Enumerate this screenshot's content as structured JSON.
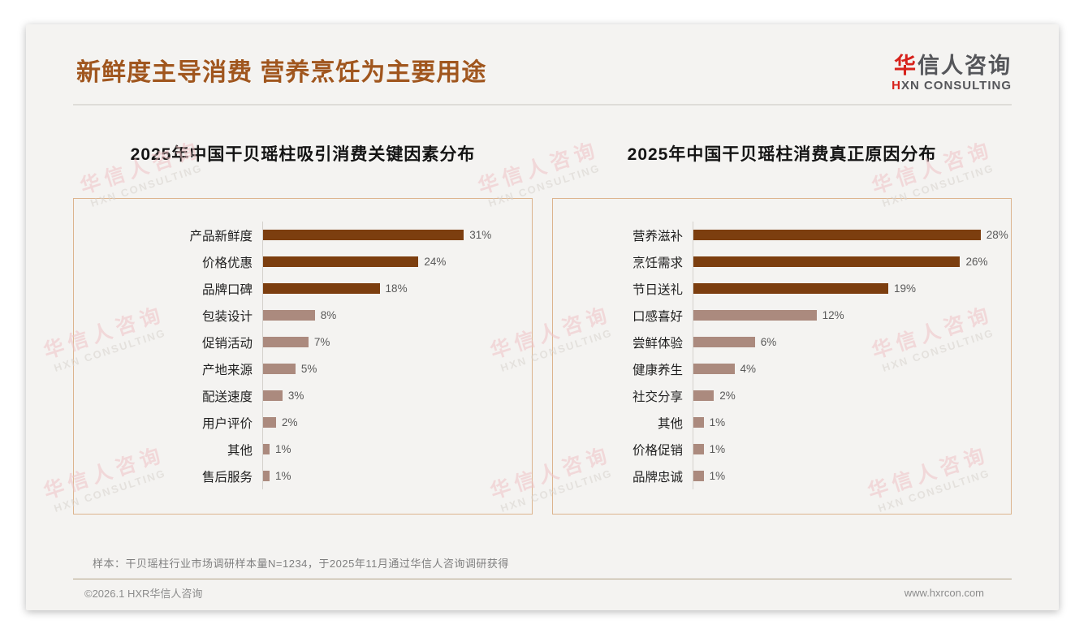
{
  "header": {
    "title": "新鲜度主导消费 营养烹饪为主要用途",
    "logo": {
      "cn_first": "华",
      "cn_rest": "信人咨询",
      "en_first": "H",
      "en_rest": "XN CONSULTING"
    }
  },
  "colors": {
    "title_brown": "#A0561E",
    "bar_dark": "#7C3E0F",
    "bar_light": "#AB8A7E",
    "panel_border": "#DCB48E",
    "logo_red": "#D7221C"
  },
  "watermark": {
    "line1": "华信人咨询",
    "line2": "HXN CONSULTING"
  },
  "chart_data": [
    {
      "type": "bar",
      "orientation": "horizontal",
      "title": "2025年中国干贝瑶柱吸引消费关键因素分布",
      "categories": [
        "产品新鲜度",
        "价格优惠",
        "品牌口碑",
        "包装设计",
        "促销活动",
        "产地来源",
        "配送速度",
        "用户评价",
        "其他",
        "售后服务"
      ],
      "values": [
        31,
        24,
        18,
        8,
        7,
        5,
        3,
        2,
        1,
        1
      ],
      "value_suffix": "%",
      "xlim": [
        0,
        40
      ],
      "highlight_top_n": 3,
      "grid": false,
      "legend": "none"
    },
    {
      "type": "bar",
      "orientation": "horizontal",
      "title": "2025年中国干贝瑶柱消费真正原因分布",
      "categories": [
        "营养滋补",
        "烹饪需求",
        "节日送礼",
        "口感喜好",
        "尝鲜体验",
        "健康养生",
        "社交分享",
        "其他",
        "价格促销",
        "品牌忠诚"
      ],
      "values": [
        28,
        26,
        19,
        12,
        6,
        4,
        2,
        1,
        1,
        1
      ],
      "value_suffix": "%",
      "xlim": [
        0,
        30
      ],
      "highlight_top_n": 3,
      "grid": false,
      "legend": "none"
    }
  ],
  "footer": {
    "note": "样本：干贝瑶柱行业市场调研样本量N=1234，于2025年11月通过华信人咨询调研获得",
    "copyright": "©2026.1 HXR华信人咨询",
    "website": "www.hxrcon.com"
  }
}
